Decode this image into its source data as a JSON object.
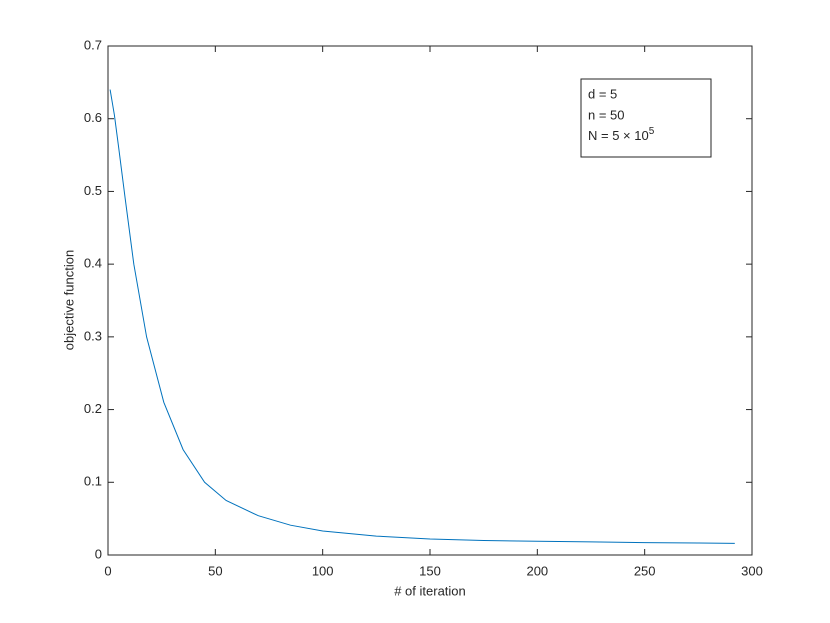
{
  "chart_data": {
    "type": "line",
    "xlabel": "# of iteration",
    "ylabel": "objective function",
    "x": [
      1,
      3,
      5,
      8,
      12,
      18,
      26,
      35,
      45,
      55,
      70,
      85,
      100,
      125,
      150,
      175,
      200,
      225,
      250,
      275,
      292
    ],
    "series": [
      {
        "color": "#0072bd",
        "values": [
          0.64,
          0.605,
          0.56,
          0.49,
          0.4,
          0.3,
          0.21,
          0.145,
          0.1,
          0.075,
          0.054,
          0.041,
          0.033,
          0.026,
          0.022,
          0.02,
          0.019,
          0.018,
          0.017,
          0.0165,
          0.016
        ]
      }
    ],
    "xlim": [
      0,
      300
    ],
    "xticks": [
      0,
      50,
      100,
      150,
      200,
      250,
      300
    ],
    "ylim": [
      0,
      0.7
    ],
    "yticks": [
      0,
      0.1,
      0.2,
      0.3,
      0.4,
      0.5,
      0.6,
      0.7
    ],
    "annotation": {
      "lines": [
        "d = 5",
        "n = 50"
      ],
      "last": {
        "text": "N = 5 × 10",
        "sup": "5"
      }
    }
  }
}
